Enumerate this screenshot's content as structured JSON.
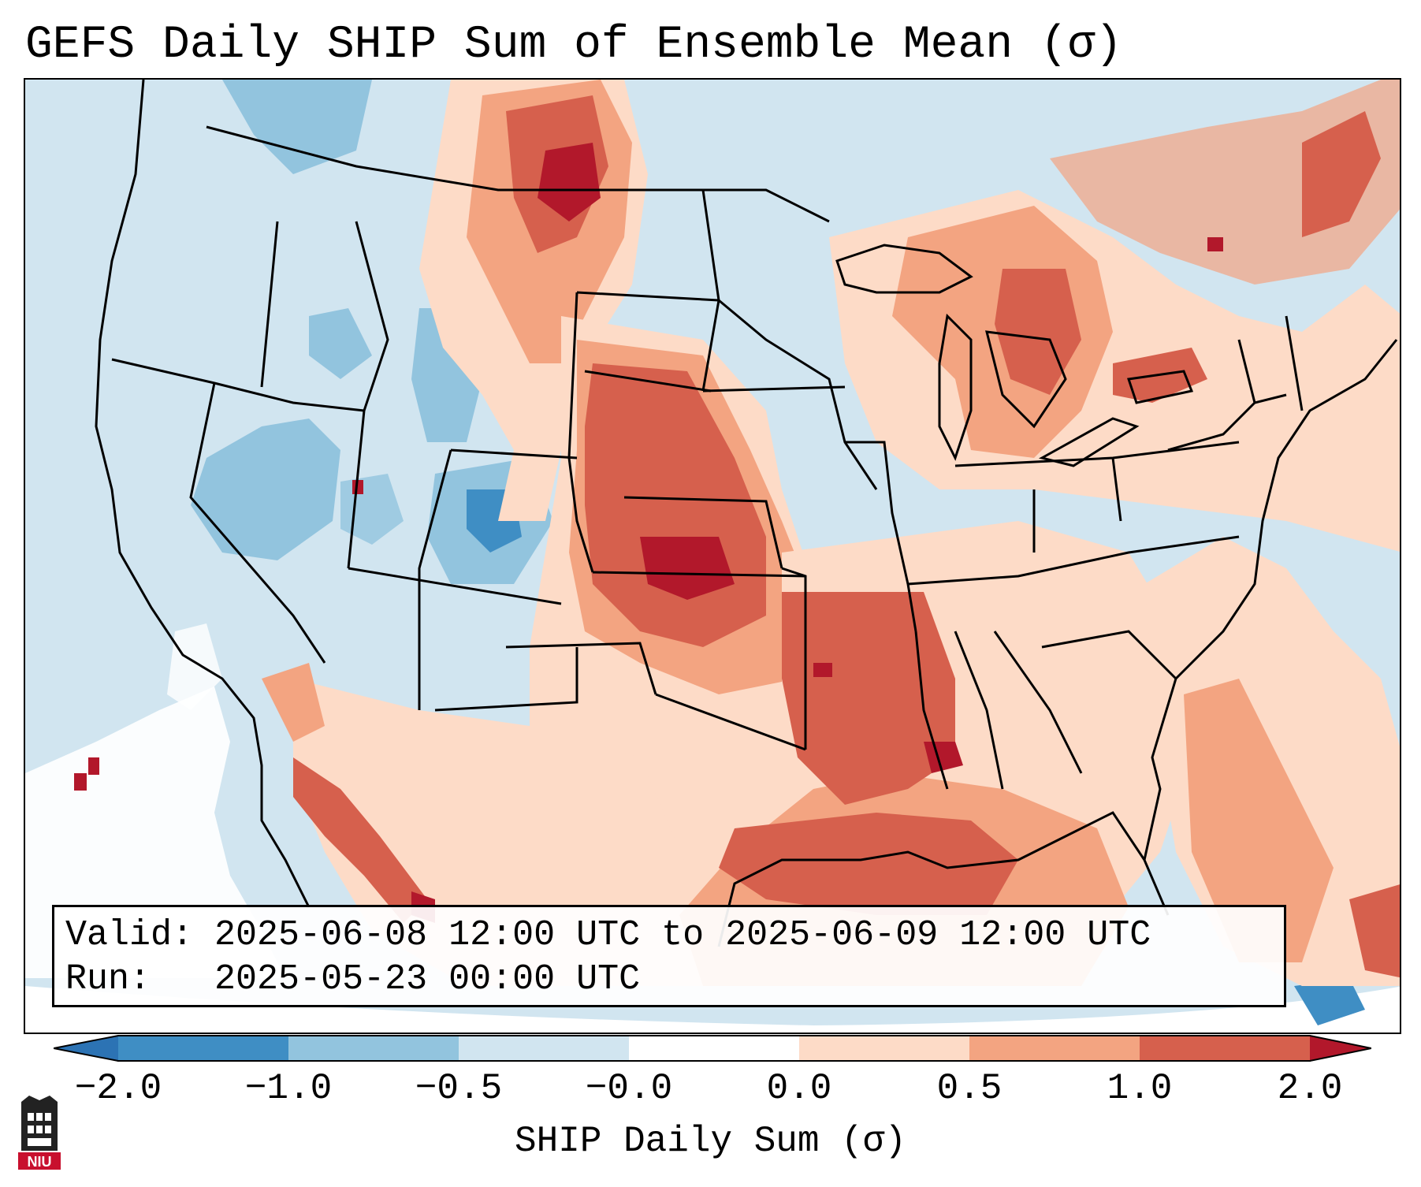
{
  "title": "GEFS Daily SHIP Sum of Ensemble Mean (σ)",
  "info": {
    "valid_label": "Valid:",
    "valid_value": "2025-06-08 12:00 UTC to 2025-06-09 12:00 UTC",
    "run_label": "Run:",
    "run_value": "2025-05-23 00:00 UTC"
  },
  "colorbar": {
    "label": "SHIP Daily Sum (σ)",
    "ticks": [
      "−2.0",
      "−1.0",
      "−0.5",
      "−0.0",
      "0.0",
      "0.5",
      "1.0",
      "2.0"
    ],
    "bins": [
      {
        "range": "below -2.0",
        "color": "#2c73b4"
      },
      {
        "range": "-2.0 to -1.0",
        "color": "#3f8ec4"
      },
      {
        "range": "-1.0 to -0.5",
        "color": "#92c4de"
      },
      {
        "range": "-0.5 to -0.0",
        "color": "#d1e5f0"
      },
      {
        "range": "-0.0 to 0.0",
        "color": "#ffffff"
      },
      {
        "range": "0.0 to 0.5",
        "color": "#fddbc7"
      },
      {
        "range": "0.5 to 1.0",
        "color": "#f3a481"
      },
      {
        "range": "1.0 to 2.0",
        "color": "#d6604d"
      },
      {
        "range": "above 2.0",
        "color": "#b2182b"
      }
    ]
  },
  "map": {
    "projection": "Lambert Conformal (CONUS)",
    "colors": {
      "ocean": "#d1e5f0",
      "outline": "#000000"
    }
  },
  "logo": {
    "text": "NIU",
    "color": "#c8102e"
  }
}
